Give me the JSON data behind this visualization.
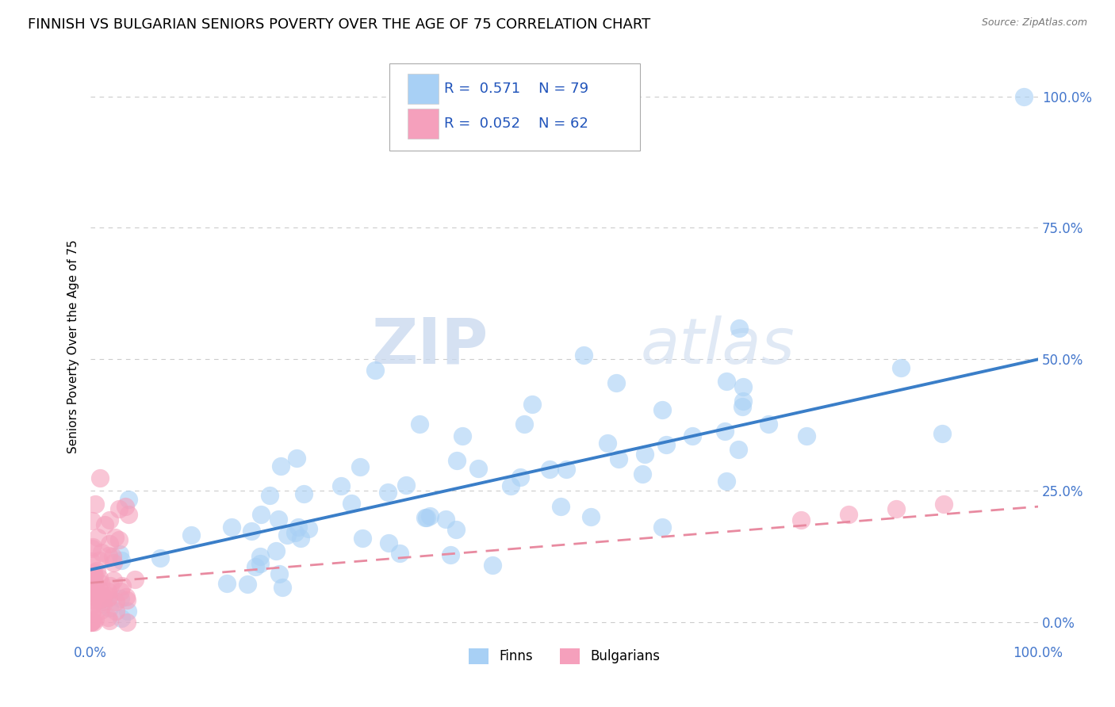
{
  "title": "FINNISH VS BULGARIAN SENIORS POVERTY OVER THE AGE OF 75 CORRELATION CHART",
  "source": "Source: ZipAtlas.com",
  "ylabel": "Seniors Poverty Over the Age of 75",
  "xlim": [
    0.0,
    1.0
  ],
  "ylim": [
    -0.03,
    1.08
  ],
  "x_ticks": [
    0.0,
    1.0
  ],
  "x_tick_labels": [
    "0.0%",
    "100.0%"
  ],
  "y_tick_labels": [
    "0.0%",
    "25.0%",
    "50.0%",
    "75.0%",
    "100.0%"
  ],
  "y_ticks": [
    0.0,
    0.25,
    0.5,
    0.75,
    1.0
  ],
  "finns_color": "#a8d0f5",
  "bulgarians_color": "#f5a0bc",
  "finns_line_color": "#3a7ec8",
  "bulgarians_line_color": "#e88aa0",
  "r_finns": 0.571,
  "n_finns": 79,
  "r_bulgarians": 0.052,
  "n_bulgarians": 62,
  "watermark_zip": "ZIP",
  "watermark_atlas": "atlas",
  "background_color": "#ffffff",
  "grid_color": "#cccccc",
  "title_fontsize": 13,
  "axis_label_fontsize": 11,
  "tick_fontsize": 12,
  "legend_label_color": "#2255bb",
  "tick_color": "#4477cc",
  "finn_line_y0": 0.1,
  "finn_line_y1": 0.5,
  "bulg_line_y0": 0.075,
  "bulg_line_y1": 0.22
}
